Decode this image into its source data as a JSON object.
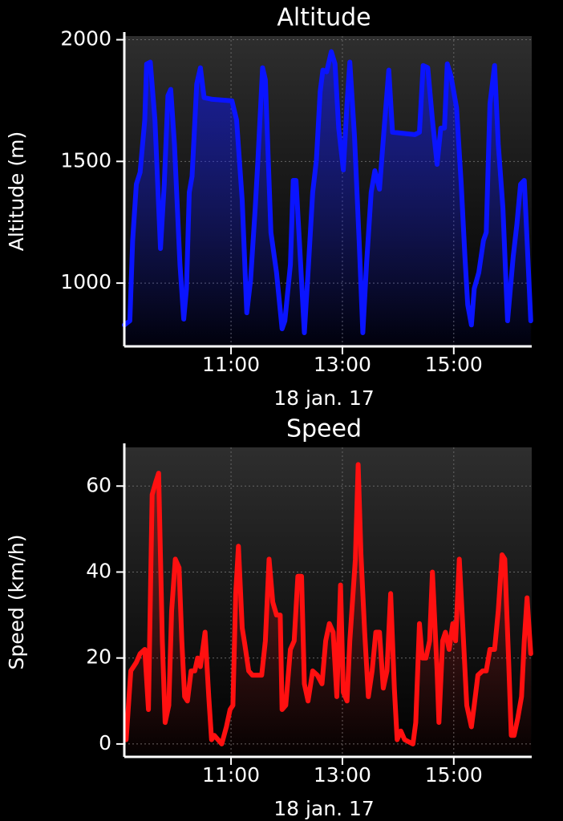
{
  "chart_data": [
    {
      "type": "line",
      "title": "Altitude",
      "y_label": "Altitude (m)",
      "x_label": "18 jan. 17",
      "color": "#0a14ff",
      "fill": true,
      "grid": true,
      "xlim": [
        "09:05",
        "16:24"
      ],
      "xticks": [
        "11:00",
        "13:00",
        "15:00"
      ],
      "ylim": [
        740,
        2015
      ],
      "yticks": [
        1000,
        1500,
        2000
      ],
      "x": [
        "09:05",
        "09:11",
        "09:14",
        "09:18",
        "09:22",
        "09:27",
        "09:29",
        "09:33",
        "09:38",
        "09:44",
        "09:48",
        "09:52",
        "09:55",
        "09:59",
        "10:05",
        "10:09",
        "10:12",
        "10:15",
        "10:18",
        "10:23",
        "10:27",
        "10:31",
        "10:40",
        "11:01",
        "11:06",
        "11:12",
        "11:17",
        "11:21",
        "11:26",
        "11:29",
        "11:34",
        "11:37",
        "11:43",
        "11:49",
        "11:55",
        "11:58",
        "12:04",
        "12:07",
        "12:10",
        "12:15",
        "12:19",
        "12:23",
        "12:28",
        "12:32",
        "12:36",
        "12:39",
        "12:43",
        "12:48",
        "12:52",
        "12:56",
        "13:01",
        "13:05",
        "13:08",
        "13:13",
        "13:18",
        "13:22",
        "13:26",
        "13:31",
        "13:35",
        "13:40",
        "13:45",
        "13:50",
        "13:54",
        "14:18",
        "14:23",
        "14:27",
        "14:32",
        "14:37",
        "14:42",
        "14:46",
        "14:50",
        "14:53",
        "14:57",
        "15:03",
        "15:08",
        "15:12",
        "15:15",
        "15:19",
        "15:22",
        "15:27",
        "15:32",
        "15:35",
        "15:39",
        "15:44",
        "15:48",
        "15:53",
        "15:58",
        "16:04",
        "16:08",
        "16:12",
        "16:16",
        "16:19",
        "16:23"
      ],
      "values": [
        828,
        845,
        1175,
        1406,
        1455,
        1670,
        1900,
        1908,
        1670,
        1142,
        1406,
        1770,
        1796,
        1571,
        1076,
        852,
        977,
        1373,
        1439,
        1818,
        1885,
        1762,
        1755,
        1749,
        1670,
        1340,
        878,
        1010,
        1307,
        1505,
        1885,
        1835,
        1208,
        1043,
        812,
        845,
        1076,
        1422,
        1422,
        1076,
        796,
        1043,
        1373,
        1505,
        1786,
        1875,
        1868,
        1951,
        1901,
        1637,
        1465,
        1736,
        1908,
        1604,
        1175,
        796,
        1076,
        1373,
        1462,
        1386,
        1637,
        1875,
        1620,
        1610,
        1620,
        1894,
        1885,
        1670,
        1488,
        1637,
        1637,
        1901,
        1851,
        1720,
        1406,
        1109,
        911,
        828,
        977,
        1043,
        1175,
        1208,
        1736,
        1894,
        1571,
        1307,
        845,
        1109,
        1241,
        1406,
        1422,
        1175,
        845
      ]
    },
    {
      "type": "line",
      "title": "Speed",
      "y_label": "Speed (km/h)",
      "x_label": "18 jan. 17",
      "color": "#ff1010",
      "fill": true,
      "grid": true,
      "xlim": [
        "09:05",
        "16:24"
      ],
      "xticks": [
        "11:00",
        "13:00",
        "15:00"
      ],
      "ylim": [
        -3,
        69
      ],
      "yticks": [
        0,
        20,
        40,
        60
      ],
      "x": [
        "09:07",
        "09:12",
        "09:18",
        "09:22",
        "09:27",
        "09:31",
        "09:35",
        "09:39",
        "09:42",
        "09:46",
        "09:49",
        "09:53",
        "09:56",
        "10:00",
        "10:04",
        "10:07",
        "10:10",
        "10:13",
        "10:17",
        "10:21",
        "10:24",
        "10:27",
        "10:32",
        "10:36",
        "10:39",
        "10:42",
        "10:46",
        "10:50",
        "10:55",
        "10:59",
        "11:02",
        "11:05",
        "11:08",
        "11:12",
        "11:15",
        "11:19",
        "11:23",
        "11:27",
        "11:33",
        "11:37",
        "11:41",
        "11:45",
        "11:49",
        "11:53",
        "11:55",
        "11:59",
        "12:04",
        "12:08",
        "12:12",
        "12:16",
        "12:19",
        "12:23",
        "12:28",
        "12:33",
        "12:38",
        "12:42",
        "12:46",
        "12:50",
        "12:54",
        "12:58",
        "13:01",
        "13:05",
        "13:08",
        "13:14",
        "13:17",
        "13:20",
        "13:24",
        "13:28",
        "13:32",
        "13:36",
        "13:40",
        "13:44",
        "13:48",
        "13:52",
        "13:56",
        "13:59",
        "14:03",
        "14:07",
        "14:16",
        "14:19",
        "14:23",
        "14:26",
        "14:30",
        "14:34",
        "14:37",
        "14:42",
        "14:44",
        "14:48",
        "14:51",
        "14:55",
        "14:59",
        "15:02",
        "15:06",
        "15:10",
        "15:14",
        "15:19",
        "15:22",
        "15:26",
        "15:31",
        "15:35",
        "15:39",
        "15:44",
        "15:48",
        "15:52",
        "15:55",
        "15:59",
        "16:02",
        "16:05",
        "16:09",
        "16:13",
        "16:16",
        "16:19",
        "16:23"
      ],
      "values": [
        1,
        17,
        19,
        21,
        22,
        8,
        58,
        61,
        63,
        24,
        5,
        9,
        31,
        43,
        41,
        24,
        11,
        10,
        17,
        17,
        20,
        18,
        26,
        11,
        1,
        2,
        1,
        0,
        4,
        8,
        9,
        35,
        46,
        27,
        23,
        17,
        16,
        16,
        16,
        24,
        43,
        33,
        30,
        30,
        8,
        9,
        22,
        24,
        39,
        39,
        14,
        10,
        17,
        16,
        14,
        24,
        28,
        26,
        11,
        37,
        12,
        10,
        24,
        43,
        65,
        44,
        26,
        11,
        17,
        26,
        26,
        13,
        17,
        35,
        13,
        1,
        3,
        1,
        0,
        5,
        28,
        20,
        20,
        24,
        40,
        17,
        5,
        24,
        26,
        22,
        28,
        24,
        43,
        26,
        9,
        4,
        9,
        16,
        17,
        17,
        22,
        22,
        31,
        44,
        43,
        20,
        2,
        2,
        6,
        11,
        24,
        34,
        21
      ]
    }
  ]
}
